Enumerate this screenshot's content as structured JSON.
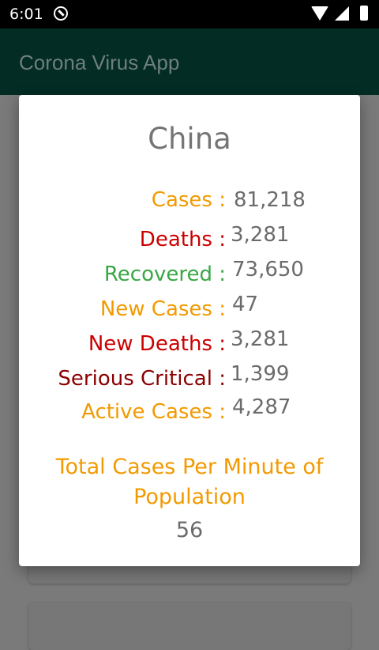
{
  "status_bar": {
    "time": "6:01",
    "icons": [
      "do-not-disturb-icon",
      "wifi-icon",
      "signal-icon",
      "battery-icon"
    ]
  },
  "app_bar": {
    "title": "Corona Virus App",
    "color": "#022c24"
  },
  "dialog": {
    "country": "China",
    "stats": [
      {
        "label": "Cases :",
        "value": "81,218",
        "color": "#f29a00"
      },
      {
        "label": "Deaths :",
        "value": "3,281",
        "color": "#cc0000"
      },
      {
        "label": "Recovered :",
        "value": "73,650",
        "color": "#3aa745"
      },
      {
        "label": "New Cases :",
        "value": "47",
        "color": "#f29a00"
      },
      {
        "label": "New Deaths :",
        "value": "3,281",
        "color": "#cc0000"
      },
      {
        "label": "Serious Critical :",
        "value": "1,399",
        "color": "#8b0000"
      },
      {
        "label": "Active Cases :",
        "value": "4,287",
        "color": "#f29a00"
      }
    ],
    "per_minute_label_line1": "Total Cases Per Minute of",
    "per_minute_label_line2": "Population",
    "per_minute_value": "56"
  }
}
